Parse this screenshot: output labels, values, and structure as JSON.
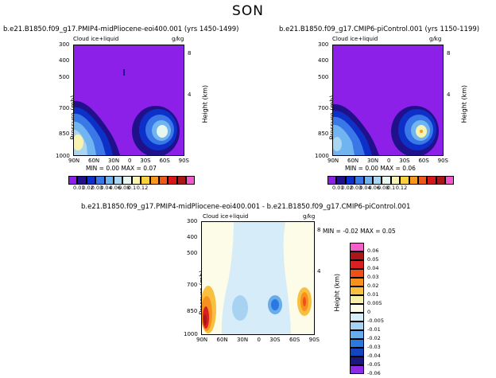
{
  "figure": {
    "title": "SON",
    "panels": [
      {
        "title": "b.e21.B1850.f09_g17.PMIP4-midPliocene-eoi400.001  (yrs 1450-1499)",
        "field_label": "Cloud ice+liquid",
        "units": "g/kg",
        "ylabel": "Pressure (mb)",
        "right_label": "Height (km)",
        "stats": "MIN =    0.00   MAX =    0.07"
      },
      {
        "title": "b.e21.B1850.f09_g17.CMIP6-piControl.001  (yrs 1150-1199)",
        "field_label": "Cloud ice+liquid",
        "units": "g/kg",
        "ylabel": "Pressure (mb)",
        "right_label": "Height (km)",
        "stats": "MIN =    0.00   MAX =    0.06"
      },
      {
        "title": "b.e21.B1850.f09_g17.PMIP4-midPliocene-eoi400.001  -  b.e21.B1850.f09_g17.CMIP6-piControl.001",
        "field_label": "Cloud ice+liquid",
        "units": "g/kg",
        "ylabel": "Pressure (mb)",
        "right_label": "Height (km)",
        "stats": "MIN =   -0.02   MAX =    0.05"
      }
    ],
    "abs_colorbar": {
      "labels": [
        "0.01",
        "0.02",
        "0.03",
        "0.04",
        "0.06",
        "0.08",
        "0.1",
        "0.12"
      ],
      "colors": [
        "#8c20e8",
        "#20108a",
        "#0c30c8",
        "#3a78e8",
        "#70b4f0",
        "#aad6f2",
        "#e8f6f0",
        "#f8f4b0",
        "#f8d040",
        "#f89820",
        "#f05818",
        "#d81818",
        "#a81818",
        "#f058d0"
      ]
    },
    "diff_colorbar": {
      "labels": [
        "0.06",
        "0.05",
        "0.04",
        "0.03",
        "0.02",
        "0.01",
        "0.005",
        "0",
        "-0.005",
        "-0.01",
        "-0.02",
        "-0.03",
        "-0.04",
        "-0.05",
        "-0.06"
      ],
      "colors": [
        "#f060c8",
        "#a81818",
        "#d82020",
        "#f05018",
        "#f89020",
        "#f8c040",
        "#f8f0a8",
        "#fcfce8",
        "#d6ecf8",
        "#a8d2f2",
        "#68acea",
        "#2a78e2",
        "#1444c0",
        "#1c1880",
        "#8c2ce6"
      ]
    }
  },
  "chart_data": [
    {
      "type": "heatmap",
      "title": "b.e21.B1850.f09_g17.PMIP4-midPliocene-eoi400.001  (yrs 1450-1499)",
      "x_ticks": [
        "90N",
        "60N",
        "30N",
        "0",
        "30S",
        "60S",
        "90S"
      ],
      "y_ticks": [
        300,
        400,
        500,
        700,
        850,
        1000
      ],
      "right_ticks": [
        8,
        4
      ],
      "ylabel": "Pressure (mb)",
      "min": 0.0,
      "max": 0.07,
      "features": [
        {
          "region": "northern high latitudes (90N-60N)",
          "pressure_range": [
            700,
            1000
          ],
          "peak_value": 0.07
        },
        {
          "region": "southern mid/high latitudes (30S-75S)",
          "pressure_range": [
            680,
            960
          ],
          "peak_value": 0.06
        }
      ]
    },
    {
      "type": "heatmap",
      "title": "b.e21.B1850.f09_g17.CMIP6-piControl.001  (yrs 1150-1199)",
      "x_ticks": [
        "90N",
        "60N",
        "30N",
        "0",
        "30S",
        "60S",
        "90S"
      ],
      "y_ticks": [
        300,
        400,
        500,
        700,
        850,
        1000
      ],
      "right_ticks": [
        8,
        4
      ],
      "ylabel": "Pressure (mb)",
      "min": 0.0,
      "max": 0.06,
      "features": [
        {
          "region": "northern high latitudes (90N-60N)",
          "pressure_range": [
            720,
            1000
          ],
          "peak_value": 0.06
        },
        {
          "region": "southern mid/high latitudes (30S-75S)",
          "pressure_range": [
            680,
            960
          ],
          "peak_value": 0.06
        }
      ]
    },
    {
      "type": "heatmap",
      "title": "b.e21.B1850.f09_g17.PMIP4-midPliocene-eoi400.001  -  b.e21.B1850.f09_g17.CMIP6-piControl.001",
      "x_ticks": [
        "90N",
        "60N",
        "30N",
        "0",
        "30S",
        "60S",
        "90S"
      ],
      "y_ticks": [
        300,
        400,
        500,
        700,
        850,
        1000
      ],
      "right_ticks": [
        8,
        4
      ],
      "ylabel": "Pressure (mb)",
      "min": -0.02,
      "max": 0.05,
      "features": [
        {
          "region": "90N-75N",
          "pressure_range": [
            750,
            1000
          ],
          "peak_value": 0.05
        },
        {
          "region": "65S-75S",
          "pressure_range": [
            780,
            900
          ],
          "peak_value": 0.04
        },
        {
          "region": "30S-45S",
          "pressure_range": [
            800,
            900
          ],
          "peak_value": -0.02
        }
      ]
    }
  ]
}
